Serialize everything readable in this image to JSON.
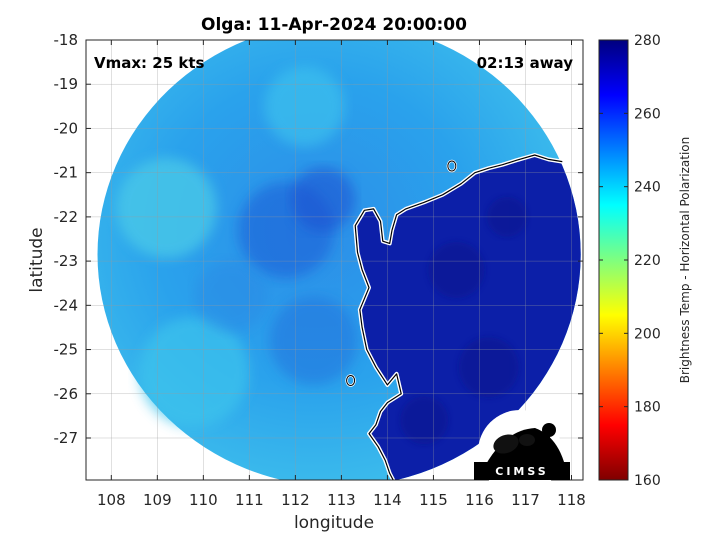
{
  "figure": {
    "title": "Olga: 11-Apr-2024 20:00:00",
    "vmax_label": "Vmax: 25 kts",
    "away_label": "02:13 away",
    "logo_text": "CIMSS"
  },
  "chart_data": {
    "type": "heatmap",
    "xlabel": "longitude",
    "ylabel": "latitude",
    "xlim": [
      107.45,
      118.25
    ],
    "ylim": [
      -27.95,
      -18
    ],
    "y_reversed": true,
    "x_ticks": [
      108,
      109,
      110,
      111,
      112,
      113,
      114,
      115,
      116,
      117,
      118
    ],
    "y_ticks": [
      -18,
      -19,
      -20,
      -21,
      -22,
      -23,
      -24,
      -25,
      -26,
      -27
    ],
    "grid": true,
    "colorbar": {
      "label": "Brightness Temp - Horizontal Polarization",
      "min": 160,
      "max": 280,
      "ticks": [
        160,
        180,
        200,
        220,
        240,
        260,
        280
      ],
      "colormap": "jet"
    },
    "swath": {
      "center_lon": 112.95,
      "center_lat": -22.85,
      "radius_deg": 5.25
    },
    "coastline": [
      [
        117.8,
        -20.75
      ],
      [
        117.5,
        -20.7
      ],
      [
        117.2,
        -20.6
      ],
      [
        116.8,
        -20.72
      ],
      [
        116.5,
        -20.82
      ],
      [
        116.2,
        -20.9
      ],
      [
        115.9,
        -21.0
      ],
      [
        115.6,
        -21.25
      ],
      [
        115.2,
        -21.5
      ],
      [
        114.8,
        -21.67
      ],
      [
        114.4,
        -21.82
      ],
      [
        114.2,
        -21.95
      ],
      [
        114.1,
        -22.3
      ],
      [
        114.05,
        -22.6
      ],
      [
        113.9,
        -22.55
      ],
      [
        113.85,
        -22.1
      ],
      [
        113.7,
        -21.82
      ],
      [
        113.5,
        -21.85
      ],
      [
        113.3,
        -22.2
      ],
      [
        113.35,
        -22.8
      ],
      [
        113.45,
        -23.2
      ],
      [
        113.6,
        -23.6
      ],
      [
        113.4,
        -24.1
      ],
      [
        113.45,
        -24.5
      ],
      [
        113.55,
        -25.0
      ],
      [
        113.75,
        -25.4
      ],
      [
        114.0,
        -25.8
      ],
      [
        114.2,
        -25.55
      ],
      [
        114.3,
        -26.0
      ],
      [
        114.0,
        -26.2
      ],
      [
        113.85,
        -26.4
      ],
      [
        113.75,
        -26.7
      ],
      [
        113.6,
        -26.9
      ],
      [
        113.8,
        -27.2
      ],
      [
        113.95,
        -27.5
      ],
      [
        114.05,
        -27.8
      ],
      [
        114.15,
        -28.0
      ]
    ]
  }
}
